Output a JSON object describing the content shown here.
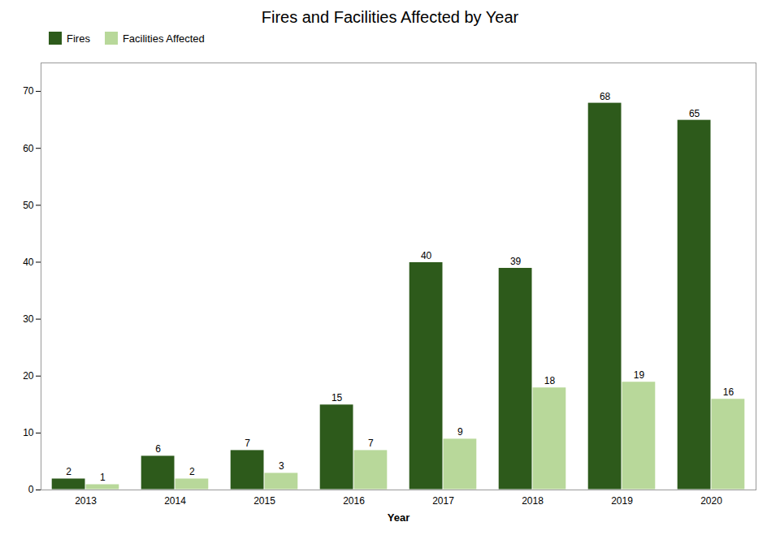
{
  "chart_data": {
    "type": "bar",
    "title": "Fires and Facilities Affected by Year",
    "xlabel": "Year",
    "categories": [
      "2013",
      "2014",
      "2015",
      "2016",
      "2017",
      "2018",
      "2019",
      "2020"
    ],
    "series": [
      {
        "name": "Fires",
        "color": "#2d5a1b",
        "values": [
          2,
          6,
          7,
          15,
          40,
          39,
          68,
          65
        ]
      },
      {
        "name": "Facilities Affected",
        "color": "#b8d89a",
        "values": [
          1,
          2,
          3,
          7,
          9,
          18,
          19,
          16
        ]
      }
    ],
    "ylim": [
      0,
      75
    ],
    "yticks": [
      0,
      10,
      20,
      30,
      40,
      50,
      60,
      70
    ],
    "grid": false,
    "legend": "upper left",
    "data_labels": true
  }
}
